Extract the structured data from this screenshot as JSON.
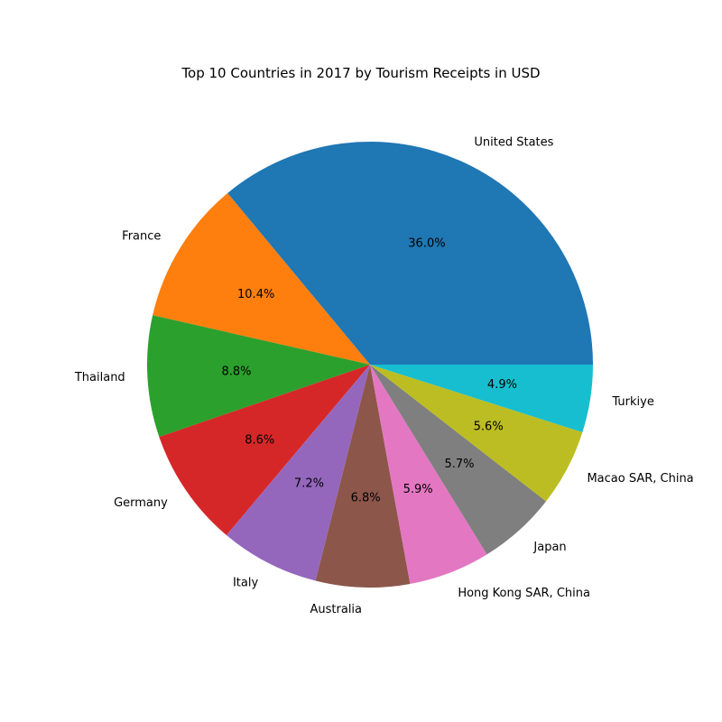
{
  "chart_data": {
    "type": "pie",
    "title": "Top 10 Countries in 2017 by Tourism Receipts in USD",
    "categories": [
      "United States",
      "France",
      "Thailand",
      "Germany",
      "Italy",
      "Australia",
      "Hong Kong SAR, China",
      "Japan",
      "Macao SAR, China",
      "Turkiye"
    ],
    "values": [
      36.0,
      10.4,
      8.8,
      8.6,
      7.2,
      6.8,
      5.9,
      5.7,
      5.6,
      4.9
    ],
    "value_labels": [
      "36.0%",
      "10.4%",
      "8.8%",
      "8.6%",
      "7.2%",
      "6.8%",
      "5.9%",
      "5.7%",
      "5.6%",
      "4.9%"
    ],
    "colors": [
      "#1f77b4",
      "#ff7f0e",
      "#2ca02c",
      "#d62728",
      "#9467bd",
      "#8c564b",
      "#e377c2",
      "#7f7f7f",
      "#bcbd22",
      "#17becf"
    ],
    "start_angle_deg": 0,
    "direction": "counterclockwise",
    "legend": "none"
  }
}
